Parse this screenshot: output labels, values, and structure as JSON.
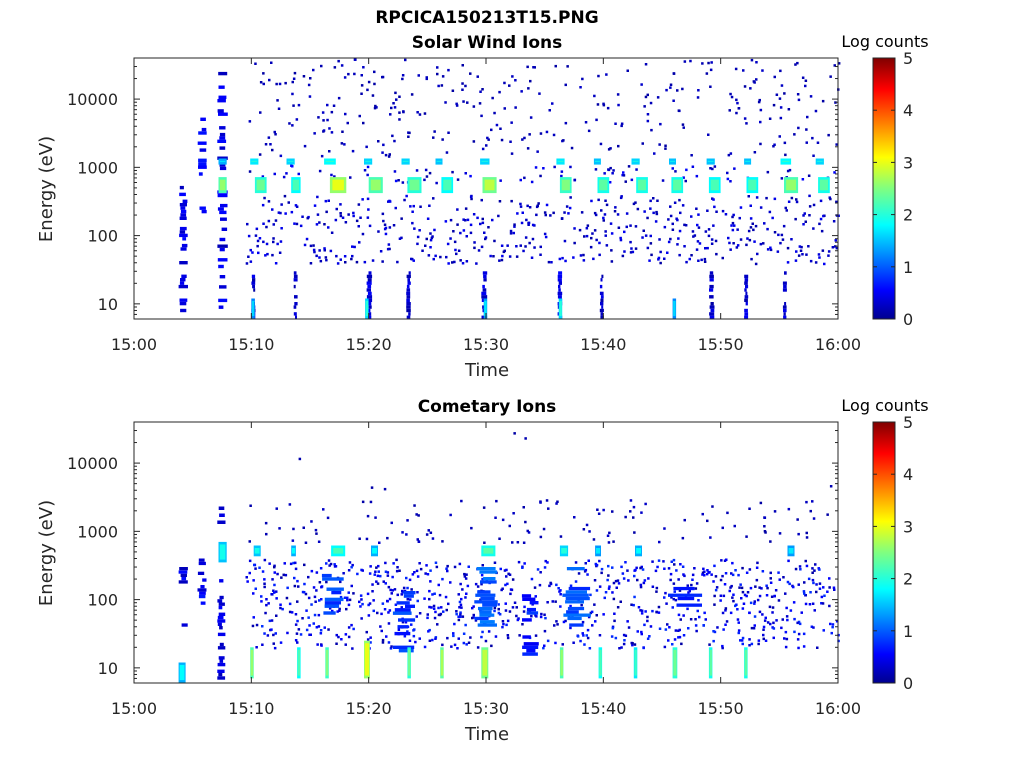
{
  "figure": {
    "title": "RPCICA150213T15.PNG"
  },
  "chart_data": [
    {
      "type": "heatmap",
      "title": "Solar Wind Ions",
      "xlabel": "Time",
      "ylabel": "Energy (eV)",
      "x_tick_labels": [
        "15:00",
        "15:10",
        "15:20",
        "15:30",
        "15:40",
        "15:50",
        "16:00"
      ],
      "x_ticks_minutes": [
        0,
        10,
        20,
        30,
        40,
        50,
        60
      ],
      "xlim_minutes": [
        0,
        60
      ],
      "y_scale": "log",
      "y_tick_labels": [
        "10",
        "100",
        "1000",
        "10000"
      ],
      "y_ticks": [
        10,
        100,
        1000,
        10000
      ],
      "ylim": [
        6,
        40000
      ],
      "colorbar": {
        "label": "Log counts",
        "ticks": [
          "0",
          "1",
          "2",
          "3",
          "4",
          "5"
        ],
        "range": [
          0,
          5
        ]
      },
      "grid": false,
      "bands": [
        {
          "x": 9.9,
          "w": 0.7,
          "y": [
            1100,
            1350
          ],
          "v": 1.7
        },
        {
          "x": 13.0,
          "w": 0.7,
          "y": [
            1100,
            1350
          ],
          "v": 1.6
        },
        {
          "x": 16.2,
          "w": 1.0,
          "y": [
            1100,
            1350
          ],
          "v": 1.8
        },
        {
          "x": 19.6,
          "w": 0.7,
          "y": [
            1100,
            1350
          ],
          "v": 1.6
        },
        {
          "x": 22.8,
          "w": 0.7,
          "y": [
            1100,
            1350
          ],
          "v": 1.6
        },
        {
          "x": 25.7,
          "w": 0.6,
          "y": [
            1100,
            1350
          ],
          "v": 1.5
        },
        {
          "x": 29.5,
          "w": 0.8,
          "y": [
            1100,
            1350
          ],
          "v": 1.6
        },
        {
          "x": 36.0,
          "w": 0.7,
          "y": [
            1100,
            1350
          ],
          "v": 1.7
        },
        {
          "x": 39.2,
          "w": 0.6,
          "y": [
            1100,
            1350
          ],
          "v": 1.5
        },
        {
          "x": 42.4,
          "w": 0.7,
          "y": [
            1100,
            1350
          ],
          "v": 1.6
        },
        {
          "x": 45.6,
          "w": 0.6,
          "y": [
            1100,
            1350
          ],
          "v": 1.5
        },
        {
          "x": 48.8,
          "w": 0.7,
          "y": [
            1100,
            1350
          ],
          "v": 1.5
        },
        {
          "x": 52.0,
          "w": 0.6,
          "y": [
            1100,
            1350
          ],
          "v": 1.5
        },
        {
          "x": 55.1,
          "w": 0.9,
          "y": [
            1100,
            1350
          ],
          "v": 1.8
        },
        {
          "x": 58.1,
          "w": 0.7,
          "y": [
            1100,
            1350
          ],
          "v": 1.6
        },
        {
          "x": 10.3,
          "w": 1.0,
          "y": [
            420,
            720
          ],
          "v": 2.0
        },
        {
          "x": 13.4,
          "w": 0.8,
          "y": [
            420,
            720
          ],
          "v": 1.8
        },
        {
          "x": 16.7,
          "w": 1.4,
          "y": [
            420,
            720
          ],
          "v": 2.6
        },
        {
          "x": 20.0,
          "w": 1.2,
          "y": [
            420,
            720
          ],
          "v": 2.2
        },
        {
          "x": 23.3,
          "w": 1.2,
          "y": [
            420,
            720
          ],
          "v": 2.0
        },
        {
          "x": 26.2,
          "w": 1.0,
          "y": [
            420,
            720
          ],
          "v": 1.8
        },
        {
          "x": 29.7,
          "w": 1.2,
          "y": [
            420,
            720
          ],
          "v": 2.4
        },
        {
          "x": 36.3,
          "w": 1.0,
          "y": [
            420,
            720
          ],
          "v": 2.1
        },
        {
          "x": 39.5,
          "w": 1.0,
          "y": [
            420,
            720
          ],
          "v": 1.9
        },
        {
          "x": 42.8,
          "w": 1.0,
          "y": [
            420,
            720
          ],
          "v": 1.9
        },
        {
          "x": 45.8,
          "w": 1.0,
          "y": [
            420,
            720
          ],
          "v": 1.9
        },
        {
          "x": 49.0,
          "w": 1.0,
          "y": [
            420,
            720
          ],
          "v": 1.8
        },
        {
          "x": 52.2,
          "w": 1.0,
          "y": [
            420,
            720
          ],
          "v": 1.8
        },
        {
          "x": 55.4,
          "w": 1.2,
          "y": [
            420,
            720
          ],
          "v": 2.2
        },
        {
          "x": 58.3,
          "w": 1.0,
          "y": [
            420,
            720
          ],
          "v": 1.9
        },
        {
          "x": 7.2,
          "w": 0.7,
          "y": [
            420,
            720
          ],
          "v": 2.2
        },
        {
          "x": 7.2,
          "w": 0.7,
          "y": [
            1100,
            1350
          ],
          "v": 1.4
        },
        {
          "x": 10.0,
          "w": 0.3,
          "y": [
            6,
            12
          ],
          "v": 1.2
        },
        {
          "x": 19.7,
          "w": 0.3,
          "y": [
            6,
            12
          ],
          "v": 1.6
        },
        {
          "x": 29.8,
          "w": 0.3,
          "y": [
            6,
            12
          ],
          "v": 1.3
        },
        {
          "x": 36.2,
          "w": 0.3,
          "y": [
            6,
            12
          ],
          "v": 1.6
        },
        {
          "x": 45.9,
          "w": 0.3,
          "y": [
            6,
            12
          ],
          "v": 1.2
        }
      ],
      "columns": [
        {
          "x": 3.8,
          "w": 0.8,
          "e": [
            6,
            600
          ],
          "density": 0.55,
          "v": 0.2
        },
        {
          "x": 5.4,
          "w": 0.8,
          "e": [
            150,
            12000
          ],
          "density": 0.25,
          "v": 0.3
        },
        {
          "x": 7.1,
          "w": 0.9,
          "e": [
            6,
            25000
          ],
          "density": 0.45,
          "v": 0.2
        },
        {
          "x": 10.0,
          "w": 0.35,
          "e": [
            6,
            30
          ],
          "density": 0.8,
          "v": 0.1
        },
        {
          "x": 13.6,
          "w": 0.35,
          "e": [
            6,
            30
          ],
          "density": 0.8,
          "v": 0.1
        },
        {
          "x": 19.8,
          "w": 0.5,
          "e": [
            6,
            30
          ],
          "density": 0.9,
          "v": 0.15
        },
        {
          "x": 23.2,
          "w": 0.4,
          "e": [
            6,
            30
          ],
          "density": 0.8,
          "v": 0.1
        },
        {
          "x": 29.6,
          "w": 0.5,
          "e": [
            6,
            30
          ],
          "density": 0.8,
          "v": 0.15
        },
        {
          "x": 36.1,
          "w": 0.4,
          "e": [
            6,
            30
          ],
          "density": 0.8,
          "v": 0.2
        },
        {
          "x": 39.7,
          "w": 0.35,
          "e": [
            6,
            30
          ],
          "density": 0.8,
          "v": 0.1
        },
        {
          "x": 49.0,
          "w": 0.5,
          "e": [
            6,
            30
          ],
          "density": 0.8,
          "v": 0.1
        },
        {
          "x": 52.0,
          "w": 0.35,
          "e": [
            6,
            30
          ],
          "density": 0.8,
          "v": 0.1
        },
        {
          "x": 55.3,
          "w": 0.35,
          "e": [
            6,
            30
          ],
          "density": 0.7,
          "v": 0.1
        }
      ],
      "scatter_seed": 7,
      "scatter": [
        {
          "x": [
            9.5,
            60
          ],
          "e": [
            40,
            400
          ],
          "n": 520,
          "v": [
            0.1,
            0.5
          ]
        },
        {
          "x": [
            9.5,
            60
          ],
          "e": [
            1500,
            40000
          ],
          "n": 320,
          "v": [
            0.1,
            0.3
          ]
        },
        {
          "x": [
            9.5,
            60
          ],
          "e": [
            600,
            1100
          ],
          "n": 90,
          "v": [
            0.1,
            0.6
          ]
        }
      ]
    },
    {
      "type": "heatmap",
      "title": "Cometary Ions",
      "xlabel": "Time",
      "ylabel": "Energy (eV)",
      "x_tick_labels": [
        "15:00",
        "15:10",
        "15:20",
        "15:30",
        "15:40",
        "15:50",
        "16:00"
      ],
      "x_ticks_minutes": [
        0,
        10,
        20,
        30,
        40,
        50,
        60
      ],
      "xlim_minutes": [
        0,
        60
      ],
      "y_scale": "log",
      "y_tick_labels": [
        "10",
        "100",
        "1000",
        "10000"
      ],
      "y_ticks": [
        10,
        100,
        1000,
        10000
      ],
      "ylim": [
        6,
        40000
      ],
      "colorbar": {
        "label": "Log counts",
        "ticks": [
          "0",
          "1",
          "2",
          "3",
          "4",
          "5"
        ],
        "range": [
          0,
          5
        ]
      },
      "grid": false,
      "bands": [
        {
          "x": 7.2,
          "w": 0.7,
          "y": [
            350,
            700
          ],
          "v": 1.5
        },
        {
          "x": 10.2,
          "w": 0.6,
          "y": [
            430,
            620
          ],
          "v": 1.5
        },
        {
          "x": 13.4,
          "w": 0.4,
          "y": [
            430,
            620
          ],
          "v": 1.4
        },
        {
          "x": 16.8,
          "w": 1.2,
          "y": [
            430,
            620
          ],
          "v": 1.8
        },
        {
          "x": 20.2,
          "w": 0.6,
          "y": [
            430,
            620
          ],
          "v": 1.4
        },
        {
          "x": 29.6,
          "w": 1.2,
          "y": [
            430,
            620
          ],
          "v": 1.9
        },
        {
          "x": 36.3,
          "w": 0.7,
          "y": [
            430,
            620
          ],
          "v": 1.6
        },
        {
          "x": 39.3,
          "w": 0.5,
          "y": [
            430,
            620
          ],
          "v": 1.3
        },
        {
          "x": 42.7,
          "w": 0.6,
          "y": [
            430,
            620
          ],
          "v": 1.4
        },
        {
          "x": 55.7,
          "w": 0.6,
          "y": [
            430,
            620
          ],
          "v": 1.3
        },
        {
          "x": 9.9,
          "w": 0.3,
          "y": [
            7,
            20
          ],
          "v": 2.2
        },
        {
          "x": 13.9,
          "w": 0.3,
          "y": [
            7,
            20
          ],
          "v": 1.8
        },
        {
          "x": 16.3,
          "w": 0.3,
          "y": [
            7,
            20
          ],
          "v": 2.1
        },
        {
          "x": 19.6,
          "w": 0.5,
          "y": [
            7,
            25
          ],
          "v": 2.6
        },
        {
          "x": 23.3,
          "w": 0.3,
          "y": [
            7,
            20
          ],
          "v": 2.0
        },
        {
          "x": 26.1,
          "w": 0.3,
          "y": [
            7,
            20
          ],
          "v": 2.3
        },
        {
          "x": 29.6,
          "w": 0.6,
          "y": [
            7,
            20
          ],
          "v": 2.4
        },
        {
          "x": 36.3,
          "w": 0.3,
          "y": [
            7,
            20
          ],
          "v": 2.2
        },
        {
          "x": 39.6,
          "w": 0.3,
          "y": [
            7,
            20
          ],
          "v": 1.8
        },
        {
          "x": 42.6,
          "w": 0.3,
          "y": [
            7,
            20
          ],
          "v": 1.7
        },
        {
          "x": 45.9,
          "w": 0.4,
          "y": [
            7,
            20
          ],
          "v": 2.0
        },
        {
          "x": 49.0,
          "w": 0.3,
          "y": [
            7,
            20
          ],
          "v": 1.9
        },
        {
          "x": 52.0,
          "w": 0.3,
          "y": [
            7,
            20
          ],
          "v": 1.9
        },
        {
          "x": 3.8,
          "w": 0.6,
          "y": [
            6,
            12
          ],
          "v": 1.4
        }
      ],
      "columns": [
        {
          "x": 3.8,
          "w": 0.8,
          "e": [
            40,
            300
          ],
          "density": 0.5,
          "v": 0.2
        },
        {
          "x": 5.4,
          "w": 0.8,
          "e": [
            60,
            400
          ],
          "density": 0.55,
          "v": 0.3
        },
        {
          "x": 7.1,
          "w": 0.7,
          "e": [
            6,
            200
          ],
          "density": 0.5,
          "v": 0.2
        },
        {
          "x": 7.1,
          "w": 0.7,
          "e": [
            900,
            2600
          ],
          "density": 0.4,
          "v": 0.2
        },
        {
          "x": 16.0,
          "w": 2.0,
          "e": [
            60,
            300
          ],
          "density": 0.5,
          "v": 0.7
        },
        {
          "x": 29.0,
          "w": 2.0,
          "e": [
            40,
            300
          ],
          "density": 0.6,
          "v": 0.8
        },
        {
          "x": 36.5,
          "w": 2.5,
          "e": [
            40,
            300
          ],
          "density": 0.5,
          "v": 0.7
        },
        {
          "x": 45.5,
          "w": 3.0,
          "e": [
            40,
            300
          ],
          "density": 0.4,
          "v": 0.6
        },
        {
          "x": 33.0,
          "w": 1.5,
          "e": [
            15,
            120
          ],
          "density": 0.5,
          "v": 0.5
        },
        {
          "x": 22.0,
          "w": 2.0,
          "e": [
            15,
            150
          ],
          "density": 0.5,
          "v": 0.6
        }
      ],
      "scatter_seed": 19,
      "scatter": [
        {
          "x": [
            9.5,
            60
          ],
          "e": [
            20,
            400
          ],
          "n": 900,
          "v": [
            0.1,
            0.8
          ]
        },
        {
          "x": [
            9.5,
            60
          ],
          "e": [
            700,
            3000
          ],
          "n": 120,
          "v": [
            0.1,
            0.3
          ]
        },
        {
          "x": [
            9.5,
            60
          ],
          "e": [
            3000,
            30000
          ],
          "n": 6,
          "v": [
            0.1,
            0.2
          ]
        }
      ]
    }
  ]
}
